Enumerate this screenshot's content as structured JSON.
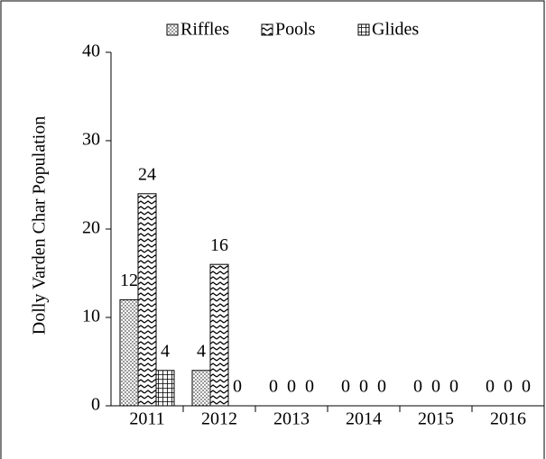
{
  "chart_data": {
    "type": "bar",
    "y_label": "Dolly Varden Char Population",
    "categories": [
      "2011",
      "2012",
      "2013",
      "2014",
      "2015",
      "2016"
    ],
    "series": [
      {
        "name": "Riffles",
        "color": "#000000",
        "pattern": "dots",
        "values": [
          12,
          4,
          0,
          0,
          0,
          0
        ]
      },
      {
        "name": "Pools",
        "color": "#000000",
        "pattern": "zigzag",
        "values": [
          24,
          16,
          0,
          0,
          0,
          0
        ]
      },
      {
        "name": "Glides",
        "color": "#000000",
        "pattern": "grid",
        "values": [
          4,
          0,
          0,
          0,
          0,
          0
        ]
      }
    ],
    "ylim": [
      0,
      40
    ],
    "yticks": [
      0,
      10,
      20,
      30,
      40
    ],
    "grid": false,
    "legend": "top"
  }
}
